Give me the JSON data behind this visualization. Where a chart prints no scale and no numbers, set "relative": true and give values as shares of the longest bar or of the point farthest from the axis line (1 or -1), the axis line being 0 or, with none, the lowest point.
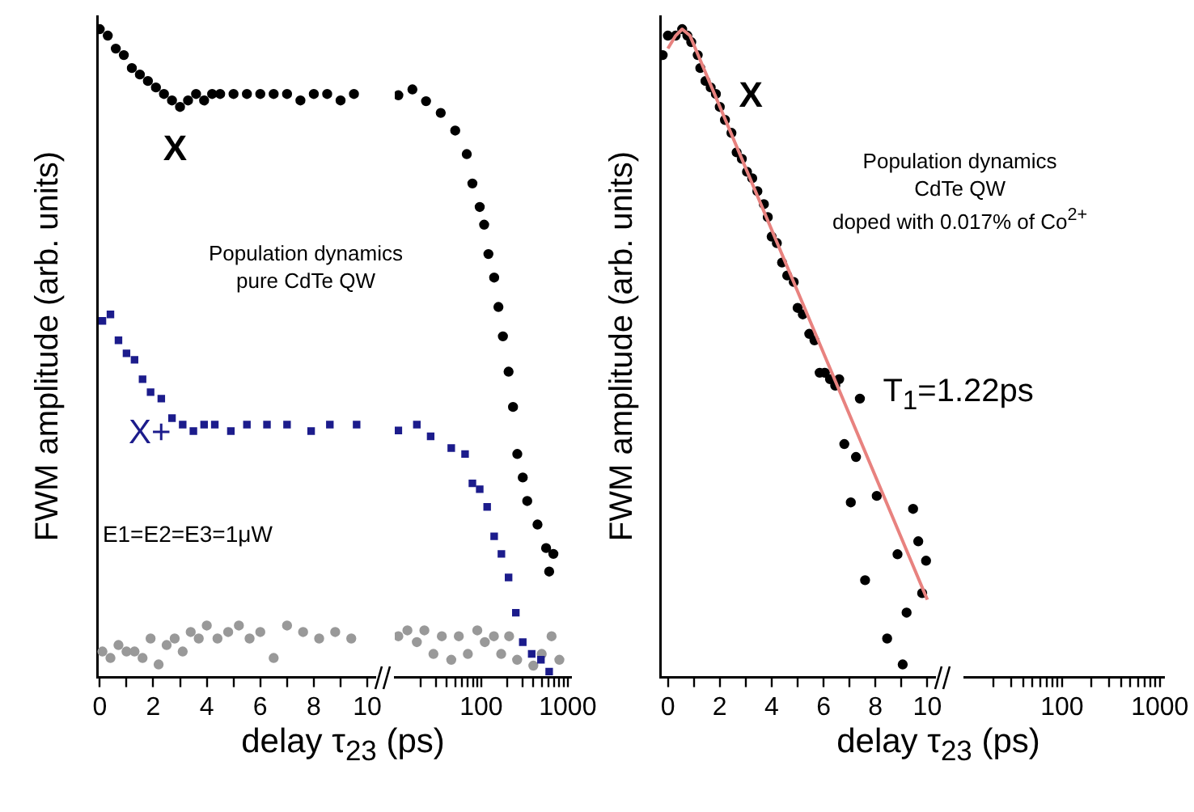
{
  "chart_data": [
    {
      "type": "scatter",
      "xlabel": "delay τ$_{23}$ (ps)",
      "ylabel": "FWM amplitude (arb. units)",
      "relative": true,
      "grid": false,
      "legend": false,
      "xlim": [
        -0.1,
        10.3
      ],
      "xticks": [
        0,
        {
          "value": 1,
          "label": null
        },
        2,
        {
          "value": 3,
          "label": null
        },
        4,
        {
          "value": 5,
          "label": null
        },
        6,
        {
          "value": 7,
          "label": null
        },
        8,
        {
          "value": 9,
          "label": null
        },
        10
      ],
      "annotations": [
        "Population dynamics\npure CdTe QW",
        "E1=E2=E3=1μW"
      ],
      "series": [
        {
          "name": "X",
          "color": "#000000",
          "marker": "circle",
          "x": [
            0,
            0.3,
            0.6,
            0.9,
            1.2,
            1.5,
            1.8,
            2.1,
            2.4,
            2.7,
            3.0,
            3.3,
            3.6,
            3.9,
            4.2,
            4.5,
            5,
            5.5,
            6,
            6.5,
            7,
            7.5,
            8,
            8.5,
            9,
            9.5
          ],
          "values": [
            1,
            0.99,
            0.97,
            0.96,
            0.94,
            0.93,
            0.92,
            0.91,
            0.9,
            0.89,
            0.88,
            0.89,
            0.9,
            0.89,
            0.9,
            0.9,
            0.9,
            0.9,
            0.9,
            0.9,
            0.9,
            0.89,
            0.9,
            0.9,
            0.89,
            0.9
          ]
        },
        {
          "name": "X+",
          "color": "#1c1c8c",
          "marker": "square",
          "x": [
            0.1,
            0.4,
            0.7,
            1.0,
            1.3,
            1.6,
            1.9,
            2.3,
            2.7,
            3.1,
            3.5,
            3.9,
            4.3,
            4.9,
            5.5,
            6.25,
            7.0,
            7.9,
            8.6,
            9.6
          ],
          "values": [
            0.55,
            0.56,
            0.52,
            0.5,
            0.49,
            0.46,
            0.44,
            0.43,
            0.4,
            0.39,
            0.38,
            0.39,
            0.39,
            0.38,
            0.39,
            0.39,
            0.39,
            0.38,
            0.39,
            0.39
          ]
        },
        {
          "color": "#999999",
          "marker": "circle",
          "x": [
            0.1,
            0.4,
            0.7,
            1.0,
            1.3,
            1.6,
            1.9,
            2.2,
            2.5,
            2.8,
            3.1,
            3.4,
            3.7,
            4.0,
            4.4,
            4.8,
            5.2,
            5.6,
            6.0,
            6.5,
            7.0,
            7.6,
            8.2,
            8.8,
            9.4
          ],
          "values": [
            0.04,
            0.03,
            0.05,
            0.04,
            0.04,
            0.03,
            0.06,
            0.02,
            0.05,
            0.06,
            0.04,
            0.07,
            0.06,
            0.08,
            0.06,
            0.07,
            0.08,
            0.06,
            0.07,
            0.03,
            0.08,
            0.07,
            0.06,
            0.07,
            0.06
          ]
        }
      ]
    },
    {
      "type": "scatter",
      "relative": true,
      "log": "x",
      "grid": false,
      "legend": false,
      "xlim": [
        10,
        1100
      ],
      "xticks": [
        {
          "value": 20,
          "label": null
        },
        {
          "value": 30,
          "label": null
        },
        {
          "value": 40,
          "label": null
        },
        {
          "value": 50,
          "label": null
        },
        {
          "value": 60,
          "label": null
        },
        {
          "value": 70,
          "label": null
        },
        {
          "value": 80,
          "label": null
        },
        {
          "value": 90,
          "label": null
        },
        100,
        {
          "value": 200,
          "label": null
        },
        {
          "value": 300,
          "label": null
        },
        {
          "value": 400,
          "label": null
        },
        {
          "value": 500,
          "label": null
        },
        {
          "value": 600,
          "label": null
        },
        {
          "value": 700,
          "label": null
        },
        {
          "value": 800,
          "label": null
        },
        {
          "value": 900,
          "label": null
        },
        1000
      ],
      "series": [
        {
          "color": "#000000",
          "marker": "circle",
          "x": [
            11,
            16,
            23,
            34,
            50,
            68,
            79,
            96,
            108,
            121,
            141,
            158,
            178,
            207,
            233,
            261,
            302,
            340,
            447,
            562,
            610,
            682
          ],
          "values": [
            0.99,
            1,
            0.98,
            0.96,
            0.93,
            0.89,
            0.84,
            0.8,
            0.77,
            0.72,
            0.68,
            0.63,
            0.58,
            0.52,
            0.46,
            0.38,
            0.34,
            0.3,
            0.26,
            0.22,
            0.18,
            0.21
          ]
        },
        {
          "color": "#1c1c8c",
          "marker": "square",
          "x": [
            11,
            18,
            26,
            45,
            65,
            79,
            96,
            117,
            141,
            171,
            207,
            251,
            302,
            383,
            490,
            610
          ],
          "values": [
            0.42,
            0.43,
            0.41,
            0.39,
            0.38,
            0.33,
            0.32,
            0.29,
            0.24,
            0.21,
            0.17,
            0.11,
            0.06,
            0.04,
            0.03,
            0.01
          ]
        },
        {
          "color": "#999999",
          "marker": "circle",
          "x": [
            11,
            14,
            18,
            22,
            28,
            35,
            45,
            55,
            70,
            90,
            110,
            140,
            170,
            210,
            260,
            320,
            400,
            500,
            650,
            800
          ],
          "values": [
            0.07,
            0.08,
            0.06,
            0.08,
            0.04,
            0.07,
            0.03,
            0.07,
            0.04,
            0.08,
            0.06,
            0.07,
            0.04,
            0.07,
            0.03,
            null,
            0.02,
            0.04,
            0.07,
            0.03
          ]
        }
      ]
    },
    {
      "type": "scatter",
      "xlabel": "delay τ$_{23}$ (ps)",
      "ylabel": "FWM amplitude (arb. units)",
      "relative": true,
      "grid": false,
      "legend": false,
      "xlim": [
        -0.3,
        10.3
      ],
      "xticks": [
        0,
        {
          "value": 1,
          "label": null
        },
        2,
        {
          "value": 3,
          "label": null
        },
        4,
        {
          "value": 5,
          "label": null
        },
        6,
        {
          "value": 7,
          "label": null
        },
        8,
        {
          "value": 9,
          "label": null
        },
        10
      ],
      "annotations": [
        "Population dynamics\nCdTe QW\ndoped with 0.017% of Co$^{2+}$",
        "T$_{1}$=1.22ps"
      ],
      "series": [
        {
          "name": "X",
          "color": "#000000",
          "marker": "circle",
          "x": [
            -0.2,
            0,
            0.3,
            0.55,
            0.75,
            0.9,
            1.15,
            1.25,
            1.45,
            1.65,
            1.85,
            2.0,
            2.2,
            2.45,
            2.65,
            2.85,
            3.05,
            3.25,
            3.45,
            3.7,
            3.85,
            4.0,
            4.2,
            4.4,
            4.6,
            4.85,
            5.0,
            5.2,
            5.45,
            5.65,
            5.85,
            6.05,
            6.25,
            6.45,
            6.6,
            6.8,
            7.05,
            7.25,
            7.4,
            7.6,
            8.05,
            8.45,
            8.85,
            9.05,
            9.2,
            9.45,
            9.65,
            9.8,
            9.95
          ],
          "values": [
            0.96,
            0.99,
            0.99,
            1,
            0.99,
            0.98,
            0.96,
            0.94,
            0.92,
            0.91,
            0.9,
            0.88,
            0.86,
            0.84,
            0.81,
            0.8,
            0.78,
            0.77,
            0.75,
            0.73,
            0.71,
            0.68,
            0.67,
            0.64,
            0.62,
            0.61,
            0.57,
            0.56,
            0.53,
            0.52,
            0.47,
            0.47,
            0.46,
            0.45,
            0.46,
            0.36,
            0.27,
            0.34,
            0.43,
            0.15,
            0.28,
            0.06,
            0.19,
            0.02,
            0.1,
            0.26,
            0.21,
            0.13,
            0.18
          ]
        },
        {
          "type": "line",
          "color": "#e8827f",
          "marker": "none",
          "x": [
            0,
            0.3,
            0.55,
            0.85,
            10
          ],
          "values": [
            0.97,
            0.99,
            1,
            0.99,
            0.12
          ]
        }
      ]
    },
    {
      "type": "other",
      "annotations": [
        "100",
        "1000"
      ]
    }
  ]
}
